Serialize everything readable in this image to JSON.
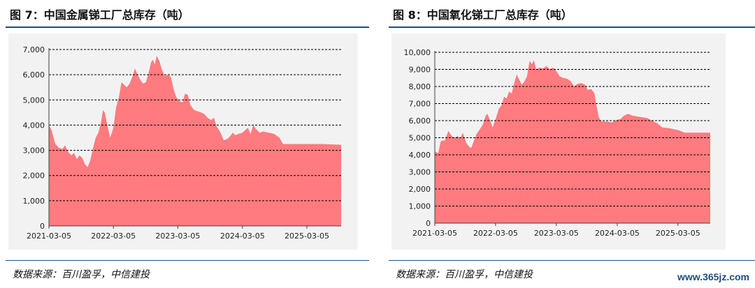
{
  "figures": [
    {
      "title": "图 7：中国金属锑工厂总库存（吨）",
      "source": "数据来源：百川盈孚，中信建投"
    },
    {
      "title": "图 8：中国氧化锑工厂总库存（吨）",
      "source": "数据来源：百川盈孚，中信建投"
    }
  ],
  "watermark": "www.365jz.com",
  "colors": {
    "area": "#ff7b7f",
    "rule": "#1f4e79",
    "grid": "#000000"
  },
  "chart_data": [
    {
      "type": "area",
      "title": "图 7：中国金属锑工厂总库存（吨）",
      "xlabel": "",
      "ylabel": "",
      "ylim": [
        0,
        7000
      ],
      "y_ticks": [
        0,
        1000,
        2000,
        3000,
        4000,
        5000,
        6000,
        7000
      ],
      "y_tick_labels": [
        "0",
        "1,000",
        "2,000",
        "3,000",
        "4,000",
        "5,000",
        "6,000",
        "7,000"
      ],
      "x_tick_labels": [
        "2021-03-05",
        "2022-03-05",
        "2023-03-05",
        "2024-03-05",
        "2025-03-05"
      ],
      "x_start": "2021-03-05",
      "x_end": "2025-09-15",
      "grid": "horizontal dashed",
      "series": [
        {
          "values": [
            [
              "2021-03-05",
              4000
            ],
            [
              "2021-03-20",
              3800
            ],
            [
              "2021-04-10",
              3250
            ],
            [
              "2021-05-01",
              3100
            ],
            [
              "2021-05-20",
              3050
            ],
            [
              "2021-06-05",
              3200
            ],
            [
              "2021-06-20",
              2950
            ],
            [
              "2021-07-10",
              2800
            ],
            [
              "2021-07-25",
              2900
            ],
            [
              "2021-08-10",
              2650
            ],
            [
              "2021-08-25",
              2800
            ],
            [
              "2021-09-10",
              2700
            ],
            [
              "2021-09-25",
              2450
            ],
            [
              "2021-10-10",
              2330
            ],
            [
              "2021-10-25",
              2600
            ],
            [
              "2021-11-10",
              3100
            ],
            [
              "2021-11-25",
              3500
            ],
            [
              "2021-12-10",
              3700
            ],
            [
              "2021-12-25",
              4100
            ],
            [
              "2022-01-05",
              4600
            ],
            [
              "2022-01-15",
              4500
            ],
            [
              "2022-01-30",
              4000
            ],
            [
              "2022-02-15",
              3500
            ],
            [
              "2022-03-05",
              3900
            ],
            [
              "2022-03-20",
              4700
            ],
            [
              "2022-04-05",
              5100
            ],
            [
              "2022-04-20",
              5700
            ],
            [
              "2022-05-05",
              5600
            ],
            [
              "2022-05-20",
              5500
            ],
            [
              "2022-06-05",
              5650
            ],
            [
              "2022-06-20",
              5900
            ],
            [
              "2022-07-05",
              6250
            ],
            [
              "2022-07-20",
              6000
            ],
            [
              "2022-08-05",
              5800
            ],
            [
              "2022-08-20",
              5650
            ],
            [
              "2022-09-05",
              5700
            ],
            [
              "2022-09-20",
              6050
            ],
            [
              "2022-10-05",
              6500
            ],
            [
              "2022-10-15",
              6600
            ],
            [
              "2022-10-25",
              6400
            ],
            [
              "2022-11-05",
              6750
            ],
            [
              "2022-11-20",
              6550
            ],
            [
              "2022-12-05",
              6200
            ],
            [
              "2022-12-20",
              5950
            ],
            [
              "2023-01-10",
              6000
            ],
            [
              "2023-01-25",
              5900
            ],
            [
              "2023-02-10",
              5400
            ],
            [
              "2023-02-25",
              5100
            ],
            [
              "2023-03-15",
              4950
            ],
            [
              "2023-04-01",
              4900
            ],
            [
              "2023-04-15",
              5250
            ],
            [
              "2023-05-01",
              5200
            ],
            [
              "2023-05-15",
              4800
            ],
            [
              "2023-06-05",
              4600
            ],
            [
              "2023-06-25",
              4550
            ],
            [
              "2023-07-15",
              4500
            ],
            [
              "2023-08-01",
              4450
            ],
            [
              "2023-08-20",
              4300
            ],
            [
              "2023-09-10",
              4200
            ],
            [
              "2023-09-25",
              4300
            ],
            [
              "2023-10-10",
              3950
            ],
            [
              "2023-10-25",
              3800
            ],
            [
              "2023-11-05",
              3650
            ],
            [
              "2023-11-20",
              3400
            ],
            [
              "2023-12-10",
              3450
            ],
            [
              "2023-12-25",
              3550
            ],
            [
              "2024-01-10",
              3700
            ],
            [
              "2024-01-25",
              3600
            ],
            [
              "2024-02-10",
              3650
            ],
            [
              "2024-03-05",
              3700
            ],
            [
              "2024-03-20",
              3800
            ],
            [
              "2024-04-05",
              3900
            ],
            [
              "2024-04-20",
              3650
            ],
            [
              "2024-05-05",
              4000
            ],
            [
              "2024-05-20",
              3850
            ],
            [
              "2024-06-10",
              3700
            ],
            [
              "2024-07-01",
              3750
            ],
            [
              "2024-08-01",
              3700
            ],
            [
              "2024-09-01",
              3650
            ],
            [
              "2024-10-01",
              3500
            ],
            [
              "2024-10-20",
              3250
            ],
            [
              "2025-01-15",
              3250
            ],
            [
              "2025-03-05",
              3250
            ],
            [
              "2025-06-01",
              3250
            ],
            [
              "2025-09-15",
              3220
            ]
          ]
        }
      ]
    },
    {
      "type": "area",
      "title": "图 8：中国氧化锑工厂总库存（吨）",
      "xlabel": "",
      "ylabel": "",
      "ylim": [
        0,
        10000
      ],
      "y_ticks": [
        0,
        1000,
        2000,
        3000,
        4000,
        5000,
        6000,
        7000,
        8000,
        9000,
        10000
      ],
      "y_tick_labels": [
        "0",
        "1,000",
        "2,000",
        "3,000",
        "4,000",
        "5,000",
        "6,000",
        "7,000",
        "8,000",
        "9,000",
        "10,000"
      ],
      "x_tick_labels": [
        "2021-03-05",
        "2022-03-05",
        "2023-03-05",
        "2024-03-05",
        "2025-03-05"
      ],
      "x_start": "2021-03-05",
      "x_end": "2025-09-15",
      "grid": "horizontal dashed",
      "series": [
        {
          "values": [
            [
              "2021-03-05",
              4200
            ],
            [
              "2021-03-25",
              4100
            ],
            [
              "2021-04-10",
              4800
            ],
            [
              "2021-05-05",
              4850
            ],
            [
              "2021-05-25",
              5400
            ],
            [
              "2021-06-15",
              5100
            ],
            [
              "2021-07-01",
              5000
            ],
            [
              "2021-07-20",
              5100
            ],
            [
              "2021-08-05",
              4950
            ],
            [
              "2021-08-20",
              5300
            ],
            [
              "2021-09-10",
              4700
            ],
            [
              "2021-09-25",
              4500
            ],
            [
              "2021-10-10",
              4400
            ],
            [
              "2021-10-25",
              4800
            ],
            [
              "2021-11-10",
              5200
            ],
            [
              "2021-12-01",
              5500
            ],
            [
              "2021-12-20",
              5800
            ],
            [
              "2022-01-05",
              6300
            ],
            [
              "2022-01-15",
              6400
            ],
            [
              "2022-02-01",
              6000
            ],
            [
              "2022-02-15",
              5600
            ],
            [
              "2022-03-05",
              6100
            ],
            [
              "2022-03-25",
              6700
            ],
            [
              "2022-04-10",
              6900
            ],
            [
              "2022-04-25",
              7400
            ],
            [
              "2022-05-10",
              7300
            ],
            [
              "2022-05-25",
              7700
            ],
            [
              "2022-06-10",
              7600
            ],
            [
              "2022-06-25",
              8200
            ],
            [
              "2022-07-10",
              8700
            ],
            [
              "2022-07-25",
              8400
            ],
            [
              "2022-08-10",
              8100
            ],
            [
              "2022-08-25",
              8300
            ],
            [
              "2022-09-10",
              8600
            ],
            [
              "2022-09-25",
              9500
            ],
            [
              "2022-10-10",
              9300
            ],
            [
              "2022-10-20",
              9550
            ],
            [
              "2022-11-05",
              9000
            ],
            [
              "2022-11-25",
              9100
            ],
            [
              "2022-12-15",
              9050
            ],
            [
              "2023-01-05",
              9200
            ],
            [
              "2023-01-25",
              9000
            ],
            [
              "2023-02-15",
              9100
            ],
            [
              "2023-03-05",
              8900
            ],
            [
              "2023-03-25",
              8600
            ],
            [
              "2023-04-15",
              8500
            ],
            [
              "2023-05-10",
              8450
            ],
            [
              "2023-06-01",
              8300
            ],
            [
              "2023-06-20",
              8000
            ],
            [
              "2023-07-10",
              8150
            ],
            [
              "2023-08-01",
              8200
            ],
            [
              "2023-08-25",
              8100
            ],
            [
              "2023-09-10",
              7800
            ],
            [
              "2023-10-01",
              7850
            ],
            [
              "2023-10-20",
              7600
            ],
            [
              "2023-11-01",
              6900
            ],
            [
              "2023-11-15",
              6200
            ],
            [
              "2023-12-01",
              5950
            ],
            [
              "2024-01-01",
              5950
            ],
            [
              "2024-02-01",
              5900
            ],
            [
              "2024-03-05",
              6050
            ],
            [
              "2024-03-25",
              6100
            ],
            [
              "2024-04-15",
              6300
            ],
            [
              "2024-05-10",
              6400
            ],
            [
              "2024-06-05",
              6300
            ],
            [
              "2024-07-01",
              6250
            ],
            [
              "2024-08-01",
              6200
            ],
            [
              "2024-09-01",
              6150
            ],
            [
              "2024-10-01",
              6000
            ],
            [
              "2024-11-01",
              5850
            ],
            [
              "2024-12-01",
              5600
            ],
            [
              "2025-01-15",
              5550
            ],
            [
              "2025-03-05",
              5450
            ],
            [
              "2025-04-15",
              5300
            ],
            [
              "2025-06-01",
              5300
            ],
            [
              "2025-09-15",
              5300
            ]
          ]
        }
      ]
    }
  ]
}
